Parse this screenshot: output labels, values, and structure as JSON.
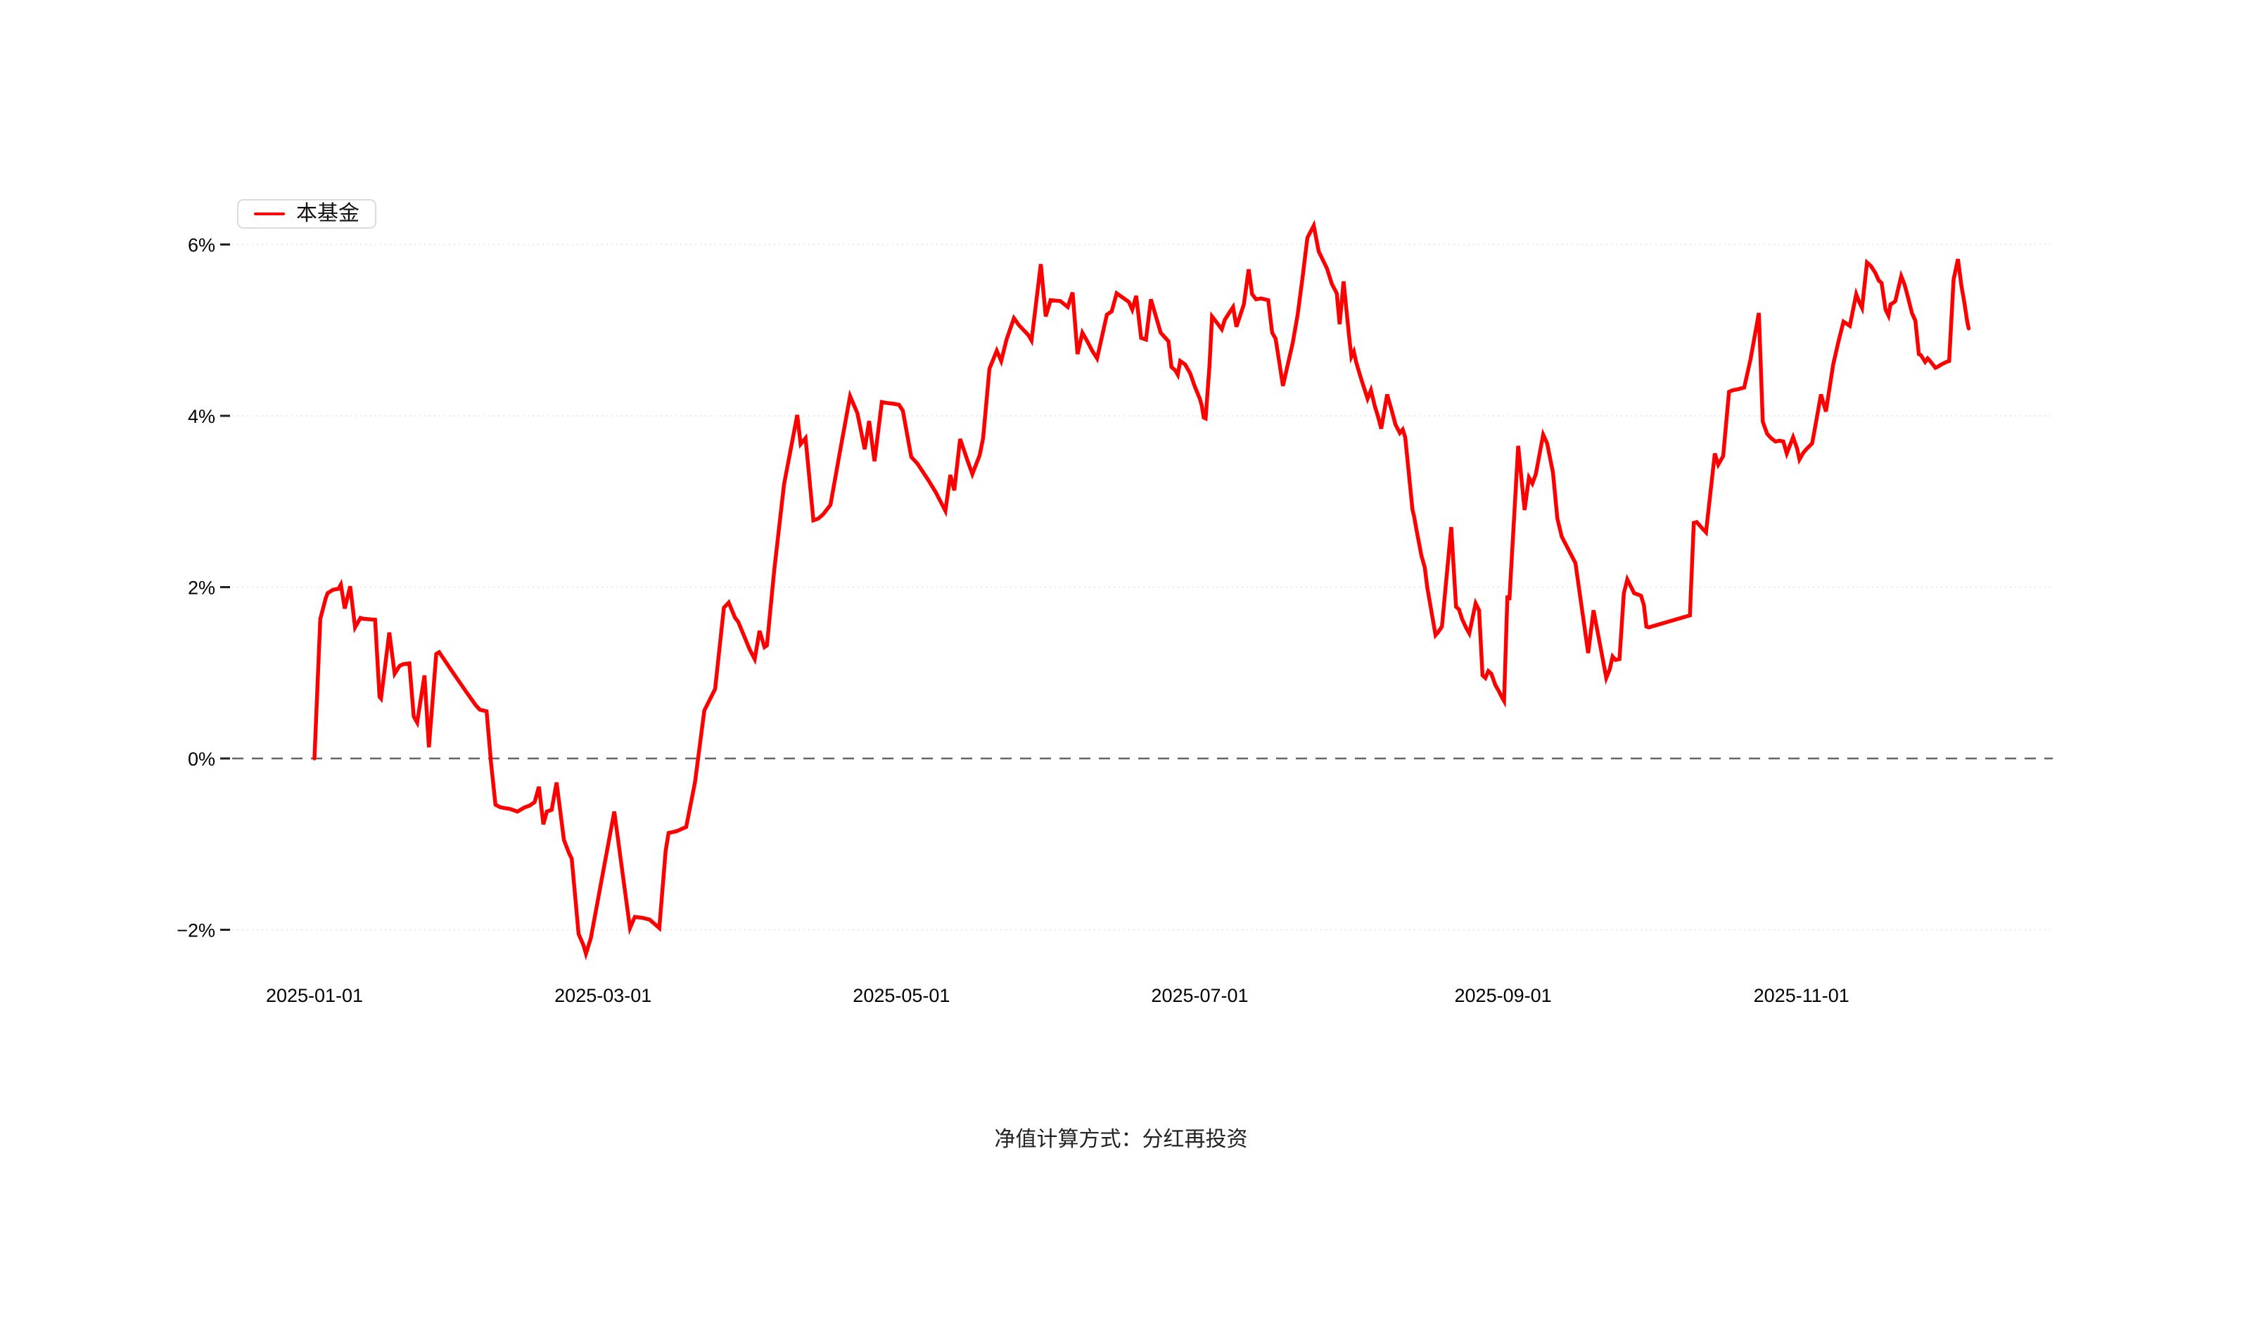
{
  "caption": "净值计算方式：分红再投资",
  "legend": {
    "items": [
      {
        "label": "本基金",
        "color": "#ff0000"
      }
    ]
  },
  "chart_data": {
    "type": "line",
    "title": "",
    "xlabel": "",
    "ylabel": "",
    "grid": true,
    "legend_position": "top-left",
    "x_axis": {
      "unit": "days since 2025-01-01",
      "tick_labels": [
        "2025-01-01",
        "2025-03-01",
        "2025-05-01",
        "2025-07-01",
        "2025-09-01",
        "2025-11-01"
      ],
      "tick_day_offsets": [
        0,
        59,
        120,
        181,
        243,
        304
      ]
    },
    "y_axis": {
      "tick_labels": [
        "6%",
        "4%",
        "2%",
        "0%",
        "−2%"
      ],
      "tick_values": [
        6,
        4,
        2,
        0,
        -2
      ],
      "range": [
        -2.75,
        6.6
      ],
      "zero_line_style": "dashed"
    },
    "series": [
      {
        "name": "本基金",
        "color": "#ff0000",
        "points": [
          [
            0,
            0
          ],
          [
            1.2,
            1.63
          ],
          [
            2.3,
            1.87
          ],
          [
            2.7,
            1.93
          ],
          [
            3.8,
            1.97
          ],
          [
            4.9,
            1.98
          ],
          [
            5.4,
            2.03
          ],
          [
            6.2,
            1.75
          ],
          [
            7.3,
            2.01
          ],
          [
            8.3,
            1.53
          ],
          [
            9.4,
            1.64
          ],
          [
            10,
            1.63
          ],
          [
            12.4,
            1.62
          ],
          [
            13.3,
            0.72
          ],
          [
            13.6,
            0.7
          ],
          [
            15.3,
            1.47
          ],
          [
            16.4,
            0.99
          ],
          [
            17.4,
            1.08
          ],
          [
            18.1,
            1.1
          ],
          [
            19.4,
            1.11
          ],
          [
            20.3,
            0.49
          ],
          [
            21,
            0.42
          ],
          [
            22.5,
            0.97
          ],
          [
            23.4,
            0.13
          ],
          [
            24.9,
            1.22
          ],
          [
            25.5,
            1.24
          ],
          [
            28.7,
            0.97
          ],
          [
            31,
            0.78
          ],
          [
            33,
            0.62
          ],
          [
            33.8,
            0.57
          ],
          [
            35.2,
            0.55
          ],
          [
            36.1,
            -0.05
          ],
          [
            37,
            -0.54
          ],
          [
            38,
            -0.57
          ],
          [
            40,
            -0.59
          ],
          [
            41.5,
            -0.62
          ],
          [
            43,
            -0.57
          ],
          [
            44,
            -0.55
          ],
          [
            45,
            -0.51
          ],
          [
            45.9,
            -0.33
          ],
          [
            46.8,
            -0.77
          ],
          [
            47.5,
            -0.62
          ],
          [
            48.5,
            -0.6
          ],
          [
            49.5,
            -0.28
          ],
          [
            51,
            -0.95
          ],
          [
            52,
            -1.1
          ],
          [
            52.6,
            -1.17
          ],
          [
            54,
            -2.05
          ],
          [
            55,
            -2.18
          ],
          [
            55.5,
            -2.28
          ],
          [
            56.5,
            -2.1
          ],
          [
            61.3,
            -0.62
          ],
          [
            64.5,
            -1.98
          ],
          [
            65.5,
            -1.85
          ],
          [
            67,
            -1.86
          ],
          [
            68.5,
            -1.88
          ],
          [
            70.5,
            -1.98
          ],
          [
            71.8,
            -1.08
          ],
          [
            72.4,
            -0.87
          ],
          [
            74,
            -0.85
          ],
          [
            76,
            -0.8
          ],
          [
            77.8,
            -0.28
          ],
          [
            79.7,
            0.56
          ],
          [
            81.9,
            0.81
          ],
          [
            83.7,
            1.76
          ],
          [
            84.7,
            1.82
          ],
          [
            86,
            1.64
          ],
          [
            86.6,
            1.6
          ],
          [
            87.9,
            1.42
          ],
          [
            89,
            1.27
          ],
          [
            90,
            1.16
          ],
          [
            91,
            1.49
          ],
          [
            92,
            1.3
          ],
          [
            92.5,
            1.32
          ],
          [
            94,
            2.2
          ],
          [
            96,
            3.2
          ],
          [
            98.7,
            4.01
          ],
          [
            99.4,
            3.67
          ],
          [
            100.4,
            3.74
          ],
          [
            102,
            2.78
          ],
          [
            103,
            2.8
          ],
          [
            104,
            2.85
          ],
          [
            105.5,
            2.96
          ],
          [
            107.5,
            3.6
          ],
          [
            109.5,
            4.23
          ],
          [
            111,
            4.03
          ],
          [
            112.5,
            3.61
          ],
          [
            113.4,
            3.94
          ],
          [
            114.5,
            3.47
          ],
          [
            116,
            4.16
          ],
          [
            117,
            4.15
          ],
          [
            118.5,
            4.14
          ],
          [
            119.5,
            4.13
          ],
          [
            120.3,
            4.06
          ],
          [
            122,
            3.52
          ],
          [
            123.3,
            3.44
          ],
          [
            125.5,
            3.25
          ],
          [
            127,
            3.11
          ],
          [
            129,
            2.89
          ],
          [
            130,
            3.31
          ],
          [
            130.8,
            3.13
          ],
          [
            132,
            3.73
          ],
          [
            133.5,
            3.48
          ],
          [
            134.5,
            3.32
          ],
          [
            136,
            3.54
          ],
          [
            136.7,
            3.74
          ],
          [
            138,
            4.55
          ],
          [
            139.5,
            4.76
          ],
          [
            140.4,
            4.64
          ],
          [
            141.5,
            4.89
          ],
          [
            143,
            5.14
          ],
          [
            144,
            5.06
          ],
          [
            146,
            4.94
          ],
          [
            146.6,
            4.88
          ],
          [
            148.5,
            5.77
          ],
          [
            149.5,
            5.16
          ],
          [
            150.5,
            5.35
          ],
          [
            152.5,
            5.34
          ],
          [
            154,
            5.27
          ],
          [
            155,
            5.44
          ],
          [
            156,
            4.72
          ],
          [
            157,
            4.97
          ],
          [
            158,
            4.87
          ],
          [
            159,
            4.76
          ],
          [
            160,
            4.67
          ],
          [
            162,
            5.18
          ],
          [
            163,
            5.22
          ],
          [
            164,
            5.43
          ],
          [
            165,
            5.39
          ],
          [
            166.5,
            5.33
          ],
          [
            167.2,
            5.24
          ],
          [
            168,
            5.4
          ],
          [
            169,
            4.91
          ],
          [
            170,
            4.89
          ],
          [
            171,
            5.36
          ],
          [
            173,
            4.97
          ],
          [
            174.6,
            4.87
          ],
          [
            175.2,
            4.57
          ],
          [
            176,
            4.53
          ],
          [
            176.5,
            4.48
          ],
          [
            177,
            4.64
          ],
          [
            178,
            4.6
          ],
          [
            179,
            4.5
          ],
          [
            180,
            4.34
          ],
          [
            181,
            4.2
          ],
          [
            181.4,
            4.12
          ],
          [
            181.8,
            3.98
          ],
          [
            182.2,
            3.97
          ],
          [
            183,
            4.6
          ],
          [
            183.5,
            5.16
          ],
          [
            184.6,
            5.08
          ],
          [
            185.5,
            5.01
          ],
          [
            186.1,
            5.12
          ],
          [
            187,
            5.2
          ],
          [
            187.8,
            5.27
          ],
          [
            188.5,
            5.04
          ],
          [
            190,
            5.3
          ],
          [
            191,
            5.71
          ],
          [
            191.7,
            5.42
          ],
          [
            192.5,
            5.36
          ],
          [
            193.5,
            5.37
          ],
          [
            195,
            5.35
          ],
          [
            195.8,
            4.97
          ],
          [
            196.5,
            4.9
          ],
          [
            198,
            4.35
          ],
          [
            199,
            4.6
          ],
          [
            200,
            4.85
          ],
          [
            201,
            5.18
          ],
          [
            202,
            5.61
          ],
          [
            203,
            6.08
          ],
          [
            204.3,
            6.22
          ],
          [
            205.3,
            5.92
          ],
          [
            207,
            5.72
          ],
          [
            208,
            5.54
          ],
          [
            209,
            5.43
          ],
          [
            209.6,
            5.07
          ],
          [
            210.4,
            5.57
          ],
          [
            211.5,
            4.94
          ],
          [
            212,
            4.69
          ],
          [
            212.5,
            4.75
          ],
          [
            213,
            4.62
          ],
          [
            214,
            4.43
          ],
          [
            215.3,
            4.2
          ],
          [
            216,
            4.3
          ],
          [
            216.8,
            4.11
          ],
          [
            217.4,
            4.0
          ],
          [
            218.1,
            3.85
          ],
          [
            219.3,
            4.25
          ],
          [
            220.1,
            4.09
          ],
          [
            221,
            3.9
          ],
          [
            221.9,
            3.8
          ],
          [
            222.5,
            3.84
          ],
          [
            223,
            3.75
          ],
          [
            224.5,
            2.9
          ],
          [
            224.8,
            2.83
          ],
          [
            225.3,
            2.67
          ],
          [
            226.3,
            2.37
          ],
          [
            227,
            2.23
          ],
          [
            227.5,
            2.0
          ],
          [
            229.2,
            1.44
          ],
          [
            229.8,
            1.48
          ],
          [
            230.5,
            1.54
          ],
          [
            232.4,
            2.7
          ],
          [
            233.4,
            1.77
          ],
          [
            234,
            1.74
          ],
          [
            234.6,
            1.63
          ],
          [
            235.5,
            1.52
          ],
          [
            236.1,
            1.46
          ],
          [
            237.4,
            1.81
          ],
          [
            238.1,
            1.73
          ],
          [
            238.8,
            0.97
          ],
          [
            239.4,
            0.94
          ],
          [
            240,
            1.02
          ],
          [
            240.6,
            0.99
          ],
          [
            241.4,
            0.86
          ],
          [
            242.1,
            0.79
          ],
          [
            242.8,
            0.71
          ],
          [
            243.2,
            0.67
          ],
          [
            243.9,
            1.9
          ],
          [
            244.3,
            1.85
          ],
          [
            246.1,
            3.65
          ],
          [
            247.4,
            2.9
          ],
          [
            248.3,
            3.28
          ],
          [
            249,
            3.21
          ],
          [
            249.7,
            3.32
          ],
          [
            251.2,
            3.78
          ],
          [
            252,
            3.68
          ],
          [
            253.2,
            3.34
          ],
          [
            254.1,
            2.8
          ],
          [
            255,
            2.59
          ],
          [
            257.8,
            2.28
          ],
          [
            260.4,
            1.23
          ],
          [
            261.5,
            1.73
          ],
          [
            262.8,
            1.34
          ],
          [
            264.1,
            0.94
          ],
          [
            264.8,
            1.04
          ],
          [
            265.4,
            1.19
          ],
          [
            266,
            1.15
          ],
          [
            266.8,
            1.16
          ],
          [
            267.7,
            1.93
          ],
          [
            268.4,
            2.09
          ],
          [
            269.8,
            1.93
          ],
          [
            271.2,
            1.9
          ],
          [
            271.8,
            1.79
          ],
          [
            272.3,
            1.54
          ],
          [
            272.8,
            1.53
          ],
          [
            281.2,
            1.67
          ],
          [
            282,
            2.75
          ],
          [
            282.6,
            2.76
          ],
          [
            283.5,
            2.7
          ],
          [
            284.5,
            2.64
          ],
          [
            286.3,
            3.56
          ],
          [
            287,
            3.43
          ],
          [
            288,
            3.53
          ],
          [
            289.2,
            4.28
          ],
          [
            290,
            4.3
          ],
          [
            291,
            4.31
          ],
          [
            292.3,
            4.33
          ],
          [
            293.6,
            4.66
          ],
          [
            295.3,
            5.2
          ],
          [
            296.1,
            3.93
          ],
          [
            297,
            3.79
          ],
          [
            297.8,
            3.74
          ],
          [
            298.7,
            3.7
          ],
          [
            299.5,
            3.71
          ],
          [
            300.3,
            3.7
          ],
          [
            301,
            3.56
          ],
          [
            302.3,
            3.75
          ],
          [
            303.1,
            3.62
          ],
          [
            303.6,
            3.49
          ],
          [
            304.4,
            3.57
          ],
          [
            305,
            3.61
          ],
          [
            306.2,
            3.68
          ],
          [
            306.9,
            3.9
          ],
          [
            308,
            4.25
          ],
          [
            309,
            4.05
          ],
          [
            310.5,
            4.6
          ],
          [
            311.5,
            4.85
          ],
          [
            312.6,
            5.1
          ],
          [
            313.9,
            5.05
          ],
          [
            315.2,
            5.42
          ],
          [
            315.8,
            5.33
          ],
          [
            316.4,
            5.26
          ],
          [
            317.4,
            5.79
          ],
          [
            318.2,
            5.75
          ],
          [
            319.1,
            5.67
          ],
          [
            319.8,
            5.58
          ],
          [
            320.4,
            5.55
          ],
          [
            321.2,
            5.24
          ],
          [
            321.8,
            5.17
          ],
          [
            322.2,
            5.3
          ],
          [
            322.8,
            5.32
          ],
          [
            323.2,
            5.34
          ],
          [
            324.4,
            5.63
          ],
          [
            325.1,
            5.53
          ],
          [
            325.8,
            5.38
          ],
          [
            326.6,
            5.2
          ],
          [
            327.3,
            5.11
          ],
          [
            328,
            4.72
          ],
          [
            328.4,
            4.71
          ],
          [
            329.3,
            4.63
          ],
          [
            329.8,
            4.67
          ],
          [
            330.3,
            4.64
          ],
          [
            331.4,
            4.56
          ],
          [
            331.8,
            4.57
          ],
          [
            332.6,
            4.6
          ],
          [
            333.7,
            4.63
          ],
          [
            334.2,
            4.64
          ],
          [
            335.1,
            5.59
          ],
          [
            336,
            5.83
          ],
          [
            336.7,
            5.52
          ],
          [
            337.3,
            5.33
          ],
          [
            337.9,
            5.1
          ],
          [
            338.2,
            5.02
          ]
        ]
      }
    ]
  }
}
